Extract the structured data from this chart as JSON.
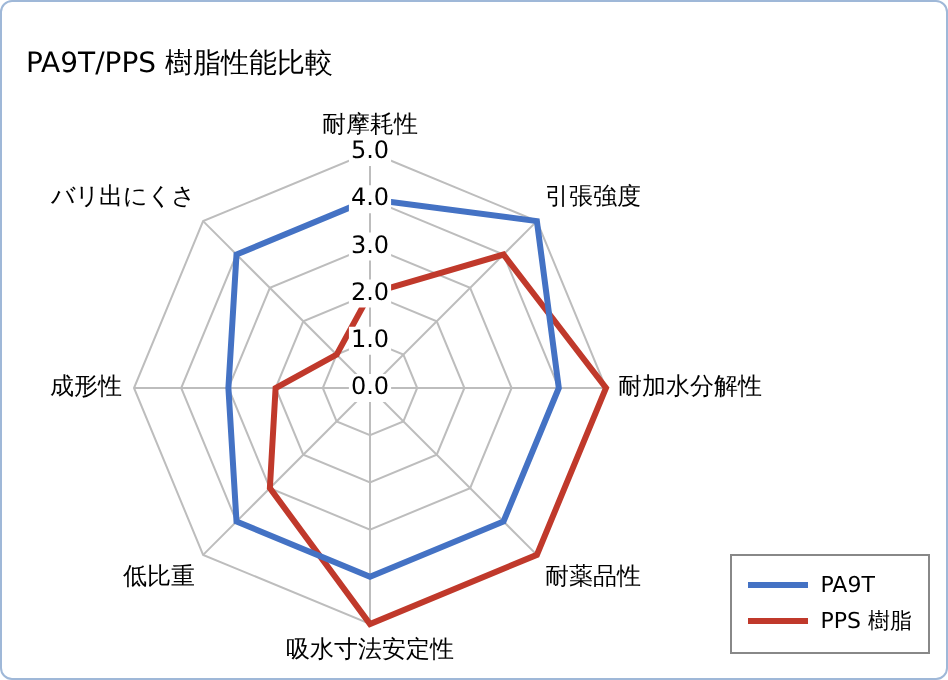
{
  "chart_data": {
    "type": "radar",
    "title": "PA9T/PPS 樹脂性能比較",
    "categories": [
      "耐摩耗性",
      "引張強度",
      "耐加水分解性",
      "耐薬品性",
      "吸水寸法安定性",
      "低比重",
      "成形性",
      "バリ出にくさ"
    ],
    "series": [
      {
        "name": "PA9T",
        "color": "#4472c4",
        "values": [
          4,
          5,
          4,
          4,
          4,
          4,
          3,
          4
        ]
      },
      {
        "name": "PPS 樹脂",
        "color": "#c0392b",
        "values": [
          2,
          4,
          5,
          5,
          5,
          3,
          2,
          1
        ]
      }
    ],
    "ylim": [
      0,
      5
    ],
    "yticks": [
      {
        "value": 0,
        "label": "0.0"
      },
      {
        "value": 1,
        "label": "1.0"
      },
      {
        "value": 2,
        "label": "2.0"
      },
      {
        "value": 3,
        "label": "3.0"
      },
      {
        "value": 4,
        "label": "4.0"
      },
      {
        "value": 5,
        "label": "5.0"
      }
    ],
    "legend": "bottom right",
    "marker": "none"
  }
}
